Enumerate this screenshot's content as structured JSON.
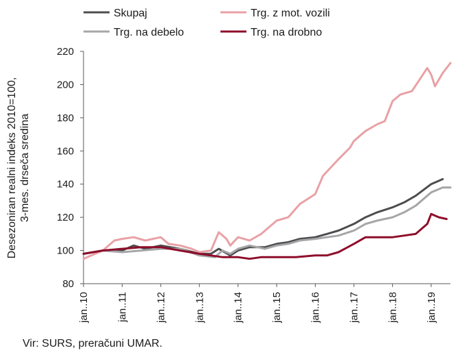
{
  "chart_data": {
    "type": "line",
    "title": "",
    "ylabel": [
      "Desezoniran realni indeks 2010=100,",
      "3-mes. drseča sredina"
    ],
    "xlabel": "",
    "ylim": [
      80,
      220
    ],
    "yticks": [
      80,
      100,
      120,
      140,
      160,
      180,
      200,
      220
    ],
    "x_tick_labels": [
      "jan..10",
      "jan..11",
      "jan..12",
      "jan..13",
      "jan..14",
      "jan..15",
      "jan..16",
      "jan..17",
      "jan..18",
      "jan..19"
    ],
    "x_start": "2010-01",
    "x_end": "2019-04",
    "legend_position": "top",
    "series": [
      {
        "name": "Skupaj",
        "color": "#4d4d4f",
        "values": [
          [
            2010.0,
            98
          ],
          [
            2010.5,
            100
          ],
          [
            2011.0,
            100
          ],
          [
            2011.3,
            103
          ],
          [
            2011.6,
            101
          ],
          [
            2012.0,
            103
          ],
          [
            2012.5,
            101
          ],
          [
            2013.0,
            98
          ],
          [
            2013.3,
            98
          ],
          [
            2013.5,
            101
          ],
          [
            2013.8,
            97
          ],
          [
            2014.0,
            100
          ],
          [
            2014.3,
            102
          ],
          [
            2014.7,
            102
          ],
          [
            2015.0,
            104
          ],
          [
            2015.3,
            105
          ],
          [
            2015.6,
            107
          ],
          [
            2016.0,
            108
          ],
          [
            2016.3,
            110
          ],
          [
            2016.6,
            112
          ],
          [
            2017.0,
            116
          ],
          [
            2017.3,
            120
          ],
          [
            2017.6,
            123
          ],
          [
            2018.0,
            126
          ],
          [
            2018.3,
            129
          ],
          [
            2018.6,
            133
          ],
          [
            2019.0,
            140
          ],
          [
            2019.3,
            143
          ]
        ]
      },
      {
        "name": "Trg. z mot. vozili",
        "color": "#e8a1a5",
        "values": [
          [
            2010.0,
            95
          ],
          [
            2010.5,
            100
          ],
          [
            2010.8,
            106
          ],
          [
            2011.0,
            107
          ],
          [
            2011.3,
            108
          ],
          [
            2011.6,
            106
          ],
          [
            2012.0,
            108
          ],
          [
            2012.2,
            104
          ],
          [
            2012.5,
            103
          ],
          [
            2012.8,
            101
          ],
          [
            2013.0,
            99
          ],
          [
            2013.3,
            100
          ],
          [
            2013.5,
            111
          ],
          [
            2013.7,
            107
          ],
          [
            2013.8,
            103
          ],
          [
            2014.0,
            108
          ],
          [
            2014.3,
            106
          ],
          [
            2014.6,
            110
          ],
          [
            2015.0,
            118
          ],
          [
            2015.3,
            120
          ],
          [
            2015.6,
            128
          ],
          [
            2016.0,
            134
          ],
          [
            2016.2,
            145
          ],
          [
            2016.4,
            150
          ],
          [
            2016.6,
            155
          ],
          [
            2016.9,
            162
          ],
          [
            2017.0,
            166
          ],
          [
            2017.3,
            172
          ],
          [
            2017.6,
            176
          ],
          [
            2017.8,
            178
          ],
          [
            2018.0,
            190
          ],
          [
            2018.2,
            194
          ],
          [
            2018.5,
            196
          ],
          [
            2018.7,
            203
          ],
          [
            2018.9,
            210
          ],
          [
            2019.0,
            206
          ],
          [
            2019.1,
            199
          ],
          [
            2019.3,
            207
          ],
          [
            2019.5,
            213
          ]
        ]
      },
      {
        "name": "Trg. na debelo",
        "color": "#a6a6a8",
        "values": [
          [
            2010.0,
            98
          ],
          [
            2010.5,
            100
          ],
          [
            2011.0,
            99
          ],
          [
            2011.5,
            100
          ],
          [
            2012.0,
            101
          ],
          [
            2012.5,
            101
          ],
          [
            2013.0,
            97
          ],
          [
            2013.4,
            96
          ],
          [
            2013.6,
            100
          ],
          [
            2013.8,
            98
          ],
          [
            2014.0,
            101
          ],
          [
            2014.3,
            103
          ],
          [
            2014.7,
            101
          ],
          [
            2015.0,
            103
          ],
          [
            2015.3,
            104
          ],
          [
            2015.6,
            106
          ],
          [
            2016.0,
            107
          ],
          [
            2016.3,
            108
          ],
          [
            2016.6,
            109
          ],
          [
            2017.0,
            112
          ],
          [
            2017.3,
            116
          ],
          [
            2017.6,
            118
          ],
          [
            2018.0,
            120
          ],
          [
            2018.3,
            123
          ],
          [
            2018.6,
            127
          ],
          [
            2019.0,
            135
          ],
          [
            2019.3,
            138
          ],
          [
            2019.5,
            138
          ]
        ]
      },
      {
        "name": "Trg. na drobno",
        "color": "#8e0d2a",
        "values": [
          [
            2010.0,
            98
          ],
          [
            2010.5,
            100
          ],
          [
            2011.0,
            101
          ],
          [
            2011.5,
            102
          ],
          [
            2012.0,
            102
          ],
          [
            2012.5,
            100
          ],
          [
            2013.0,
            98
          ],
          [
            2013.3,
            97
          ],
          [
            2013.6,
            96
          ],
          [
            2014.0,
            96
          ],
          [
            2014.3,
            95
          ],
          [
            2014.6,
            96
          ],
          [
            2015.0,
            96
          ],
          [
            2015.5,
            96
          ],
          [
            2016.0,
            97
          ],
          [
            2016.3,
            97
          ],
          [
            2016.6,
            99
          ],
          [
            2017.0,
            104
          ],
          [
            2017.3,
            108
          ],
          [
            2017.6,
            108
          ],
          [
            2018.0,
            108
          ],
          [
            2018.3,
            109
          ],
          [
            2018.6,
            110
          ],
          [
            2018.9,
            116
          ],
          [
            2019.0,
            122
          ],
          [
            2019.2,
            120
          ],
          [
            2019.4,
            119
          ]
        ]
      }
    ]
  },
  "source": "Vir: SURS, preračuni UMAR."
}
